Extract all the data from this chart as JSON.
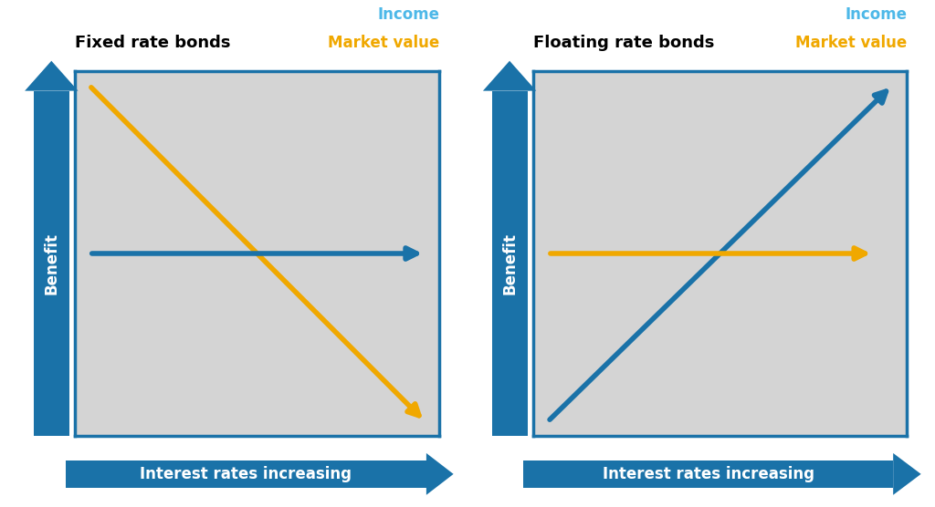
{
  "background_color": "#ffffff",
  "panel_bg_color": "#d4d4d4",
  "blue_color": "#1a72a8",
  "blue_dark": "#1565a0",
  "gold_color": "#f0a800",
  "sky_blue": "#4db8e8",
  "left_title": "Fixed rate bonds",
  "right_title": "Floating rate bonds",
  "legend_income_label": "Income",
  "legend_market_label": "Market value",
  "x_axis_label": "Interest rates increasing",
  "y_axis_label": "Benefit",
  "title_fontsize": 13,
  "label_fontsize": 12,
  "legend_fontsize": 12,
  "arrow_linewidth": 4.0,
  "panel_border_color": "#1a72a8",
  "panel_border_lw": 2.5
}
